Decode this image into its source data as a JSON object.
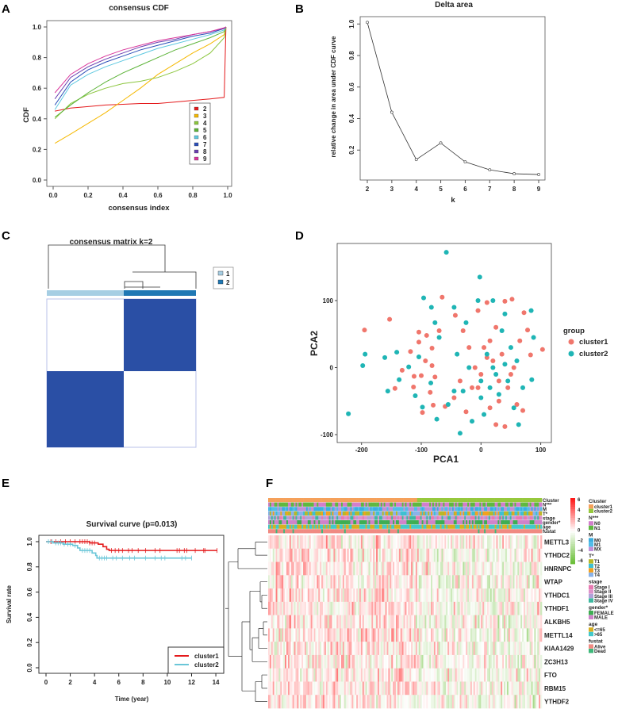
{
  "panel_labels": [
    "A",
    "B",
    "C",
    "D",
    "E",
    "F"
  ],
  "colors": {
    "cdf": [
      "#e41a1c",
      "#f5b800",
      "#8cc63e",
      "#5cb338",
      "#5ec8e0",
      "#2b4fb8",
      "#6a3fb0",
      "#d9359a"
    ],
    "matrix_dark": "#2a4fa5",
    "group_light": "#a6cee3",
    "group_dark": "#1f78b4",
    "cluster1": "#F0766C",
    "cluster2": "#1FB5B5",
    "surv1": "#e41a1c",
    "surv2": "#6ac6d8"
  },
  "chart_data": [
    {
      "type": "line",
      "title": "consensus CDF",
      "xlabel": "consensus index",
      "ylabel": "CDF",
      "xlim": [
        0,
        1
      ],
      "ylim": [
        0,
        1
      ],
      "xticks": [
        "0.0",
        "0.2",
        "0.4",
        "0.6",
        "0.8",
        "1.0"
      ],
      "yticks": [
        "0.0",
        "0.2",
        "0.4",
        "0.6",
        "0.8",
        "1.0"
      ],
      "legend": "right-center",
      "x": [
        0.01,
        0.1,
        0.2,
        0.3,
        0.4,
        0.5,
        0.6,
        0.7,
        0.8,
        0.9,
        0.98,
        0.99
      ],
      "series": [
        {
          "name": "2",
          "values": [
            0.45,
            0.47,
            0.48,
            0.49,
            0.495,
            0.5,
            0.5,
            0.51,
            0.52,
            0.53,
            0.54,
            1.0
          ]
        },
        {
          "name": "3",
          "values": [
            0.24,
            0.3,
            0.37,
            0.44,
            0.52,
            0.6,
            0.69,
            0.76,
            0.83,
            0.89,
            0.95,
            1.0
          ]
        },
        {
          "name": "4",
          "values": [
            0.4,
            0.5,
            0.56,
            0.6,
            0.63,
            0.645,
            0.67,
            0.71,
            0.76,
            0.83,
            0.93,
            1.0
          ]
        },
        {
          "name": "5",
          "values": [
            0.41,
            0.49,
            0.57,
            0.64,
            0.7,
            0.75,
            0.8,
            0.85,
            0.89,
            0.93,
            0.97,
            1.0
          ]
        },
        {
          "name": "6",
          "values": [
            0.46,
            0.62,
            0.69,
            0.74,
            0.78,
            0.82,
            0.86,
            0.89,
            0.92,
            0.95,
            0.98,
            1.0
          ]
        },
        {
          "name": "7",
          "values": [
            0.49,
            0.64,
            0.72,
            0.77,
            0.81,
            0.85,
            0.88,
            0.91,
            0.94,
            0.96,
            0.99,
            1.0
          ]
        },
        {
          "name": "8",
          "values": [
            0.53,
            0.67,
            0.74,
            0.79,
            0.83,
            0.87,
            0.9,
            0.92,
            0.95,
            0.97,
            0.99,
            1.0
          ]
        },
        {
          "name": "9",
          "values": [
            0.57,
            0.69,
            0.76,
            0.81,
            0.85,
            0.88,
            0.91,
            0.93,
            0.95,
            0.97,
            0.995,
            1.0
          ]
        }
      ]
    },
    {
      "type": "line",
      "title": "Delta area",
      "xlabel": "k",
      "ylabel": "relative change in area under CDF curve",
      "x": [
        2,
        3,
        4,
        5,
        6,
        7,
        8,
        9
      ],
      "values": [
        1.01,
        0.44,
        0.14,
        0.245,
        0.125,
        0.075,
        0.05,
        0.045
      ],
      "xticks": [
        "2",
        "3",
        "4",
        "5",
        "6",
        "7",
        "8",
        "9"
      ],
      "yticks": [
        "0.2",
        "0.4",
        "0.6",
        "0.8",
        "1.0"
      ],
      "ylim": [
        0,
        1.05
      ]
    },
    {
      "type": "heatmap",
      "title": "consensus matrix k=2",
      "legend": [
        "1",
        "2"
      ],
      "blocks": "two consensus clusters"
    },
    {
      "type": "scatter",
      "xlabel": "PCA1",
      "ylabel": "PCA2",
      "xticks": [
        "-200",
        "-100",
        "0",
        "100"
      ],
      "yticks": [
        "-100",
        "0",
        "100"
      ],
      "xlim": [
        -235,
        120
      ],
      "ylim": [
        -115,
        182
      ],
      "legend_title": "group",
      "legend": "right",
      "series": [
        {
          "name": "cluster1",
          "points": [
            [
              -195,
              56
            ],
            [
              -153,
              72
            ],
            [
              -144,
              -31
            ],
            [
              -132,
              -4
            ],
            [
              -118,
              24
            ],
            [
              -113,
              -29
            ],
            [
              -112,
              -13
            ],
            [
              -104,
              53
            ],
            [
              -104,
              38
            ],
            [
              -100,
              -12
            ],
            [
              -98,
              -67
            ],
            [
              -93,
              10
            ],
            [
              -91,
              48
            ],
            [
              -85,
              -37
            ],
            [
              -82,
              29
            ],
            [
              -82,
              3
            ],
            [
              -80,
              -56
            ],
            [
              -77,
              -14
            ],
            [
              -70,
              55
            ],
            [
              -65,
              105
            ],
            [
              -60,
              -58
            ],
            [
              -45,
              -45
            ],
            [
              -43,
              78
            ],
            [
              -35,
              -20
            ],
            [
              -30,
              55
            ],
            [
              -25,
              -66
            ],
            [
              -20,
              30
            ],
            [
              -15,
              -30
            ],
            [
              -5,
              85
            ],
            [
              0,
              -10
            ],
            [
              5,
              30
            ],
            [
              10,
              97
            ],
            [
              15,
              -60
            ],
            [
              20,
              10
            ],
            [
              25,
              -85
            ],
            [
              25,
              60
            ],
            [
              30,
              -50
            ],
            [
              35,
              20
            ],
            [
              40,
              -88
            ],
            [
              40,
              99
            ],
            [
              45,
              -30
            ],
            [
              52,
              102
            ],
            [
              55,
              0
            ],
            [
              60,
              -55
            ],
            [
              65,
              40
            ],
            [
              70,
              -64
            ],
            [
              72,
              82
            ],
            [
              78,
              56
            ],
            [
              83,
              19
            ],
            [
              103,
              27
            ],
            [
              10,
              15
            ],
            [
              -5,
              -30
            ],
            [
              30,
              -20
            ],
            [
              50,
              -10
            ],
            [
              15,
              40
            ],
            [
              -10,
              0
            ]
          ]
        },
        {
          "name": "cluster2",
          "points": [
            [
              -222,
              -69
            ],
            [
              -198,
              3
            ],
            [
              -194,
              20
            ],
            [
              -161,
              15
            ],
            [
              -156,
              -35
            ],
            [
              -141,
              23
            ],
            [
              -137,
              -18
            ],
            [
              -121,
              1
            ],
            [
              -110,
              -42
            ],
            [
              -104,
              16
            ],
            [
              -98,
              -59
            ],
            [
              -96,
              104
            ],
            [
              -84,
              -23
            ],
            [
              -83,
              90
            ],
            [
              -77,
              67
            ],
            [
              -74,
              -77
            ],
            [
              -70,
              45
            ],
            [
              -58,
              172
            ],
            [
              -55,
              -55
            ],
            [
              -45,
              90
            ],
            [
              -40,
              20
            ],
            [
              -35,
              -98
            ],
            [
              -30,
              -35
            ],
            [
              -25,
              67
            ],
            [
              -15,
              -80
            ],
            [
              -2,
              135
            ],
            [
              -5,
              100
            ],
            [
              0,
              -45
            ],
            [
              5,
              -70
            ],
            [
              10,
              20
            ],
            [
              20,
              100
            ],
            [
              25,
              -10
            ],
            [
              30,
              -40
            ],
            [
              35,
              55
            ],
            [
              40,
              80
            ],
            [
              45,
              -20
            ],
            [
              50,
              30
            ],
            [
              55,
              -60
            ],
            [
              60,
              10
            ],
            [
              63,
              -85
            ],
            [
              70,
              -30
            ],
            [
              84,
              85
            ],
            [
              85,
              -18
            ],
            [
              88,
              45
            ],
            [
              0,
              -20
            ],
            [
              15,
              -30
            ],
            [
              20,
              0
            ],
            [
              40,
              5
            ],
            [
              -20,
              0
            ],
            [
              -45,
              -35
            ]
          ]
        }
      ]
    },
    {
      "type": "line",
      "title": "Survival curve (p=0.013)",
      "xlabel": "Time (year)",
      "ylabel": "Survival rate",
      "xticks": [
        "0",
        "2",
        "4",
        "6",
        "8",
        "10",
        "12",
        "14"
      ],
      "yticks": [
        "0.0",
        "0.2",
        "0.4",
        "0.6",
        "0.8",
        "1.0"
      ],
      "xlim": [
        0,
        14
      ],
      "ylim": [
        0,
        1
      ],
      "legend": "bottom-right",
      "series": [
        {
          "name": "cluster1",
          "steps": [
            [
              0,
              1.0
            ],
            [
              3.6,
              0.99
            ],
            [
              4.3,
              0.98
            ],
            [
              4.7,
              0.96
            ],
            [
              5.0,
              0.94
            ],
            [
              5.2,
              0.93
            ],
            [
              14.1,
              0.93
            ]
          ],
          "censored": [
            0.4,
            0.8,
            1.2,
            1.6,
            2.0,
            2.4,
            2.8,
            3.0,
            3.2,
            3.4,
            3.6,
            3.8,
            4.0,
            5.4,
            5.7,
            6.0,
            6.3,
            6.8,
            7.1,
            7.6,
            8.2,
            9.0,
            9.4,
            10.8,
            11.0,
            11.4,
            11.6,
            12.3,
            13.0,
            13.1,
            14.1
          ]
        },
        {
          "name": "cluster2",
          "steps": [
            [
              0,
              1.0
            ],
            [
              0.6,
              0.99
            ],
            [
              1.4,
              0.98
            ],
            [
              2.2,
              0.97
            ],
            [
              2.6,
              0.95
            ],
            [
              2.8,
              0.93
            ],
            [
              3.8,
              0.91
            ],
            [
              4.1,
              0.89
            ],
            [
              4.2,
              0.87
            ],
            [
              12.0,
              0.87
            ]
          ],
          "censored": [
            0.2,
            0.5,
            0.8,
            1.0,
            1.2,
            1.5,
            1.8,
            2.0,
            2.4,
            3.0,
            3.2,
            3.4,
            3.6,
            4.4,
            4.6,
            4.8,
            5.0,
            5.5,
            5.8,
            6.3,
            6.9,
            7.3,
            8.2,
            9.0,
            9.5,
            9.8,
            11.2,
            11.5,
            12.0
          ]
        }
      ]
    },
    {
      "type": "heatmap",
      "rows": [
        "METTL3",
        "YTHDC2",
        "HNRNPC",
        "WTAP",
        "YTHDC1",
        "YTHDF1",
        "ALKBH5",
        "METTL14",
        "KIAA1429",
        "ZC3H13",
        "FTO",
        "RBM15",
        "YTHDF2"
      ],
      "annotation_tracks": [
        "Cluster",
        "N***",
        "M",
        "T*",
        "stage",
        "gender*",
        "age",
        "fustat"
      ],
      "color_scale": {
        "ticks": [
          "6",
          "4",
          "2",
          "0",
          "−2",
          "−4",
          "−6"
        ],
        "high": "#e41a1c",
        "mid": "#ffffff",
        "low": "#6cbf3a"
      },
      "legend_groups": [
        {
          "title": "Cluster",
          "items": [
            {
              "label": "cluster1",
              "color": "#F5A05A"
            },
            {
              "label": "cluster2",
              "color": "#96C83C"
            }
          ]
        },
        {
          "title": "N***",
          "items": [
            {
              "label": "N0",
              "color": "#D27ECC"
            },
            {
              "label": "N1",
              "color": "#5FB840"
            }
          ]
        },
        {
          "title": "M",
          "items": [
            {
              "label": "M0",
              "color": "#3AAEE0"
            },
            {
              "label": "M1",
              "color": "#52BCE8"
            },
            {
              "label": "MX",
              "color": "#C090D8"
            }
          ]
        },
        {
          "title": "T*",
          "items": [
            {
              "label": "T1",
              "color": "#B8B828"
            },
            {
              "label": "T2",
              "color": "#3EC0D2"
            },
            {
              "label": "T3",
              "color": "#F2A01E"
            },
            {
              "label": "T4",
              "color": "#8AB2E8"
            }
          ]
        },
        {
          "title": "stage",
          "items": [
            {
              "label": "Stage I",
              "color": "#E87AB2"
            },
            {
              "label": "Stage II",
              "color": "#DE92CA"
            },
            {
              "label": "Stage III",
              "color": "#B0A2D8"
            },
            {
              "label": "Stage IV",
              "color": "#3EB8A0"
            }
          ]
        },
        {
          "title": "gender*",
          "items": [
            {
              "label": "FEMALE",
              "color": "#3EAE52"
            },
            {
              "label": "MALE",
              "color": "#D082CA"
            }
          ]
        },
        {
          "title": "age",
          "items": [
            {
              "label": "<=65",
              "color": "#D8B020"
            },
            {
              "label": ">65",
              "color": "#44C8CA"
            }
          ]
        },
        {
          "title": "fustat",
          "items": [
            {
              "label": "Alive",
              "color": "#F08A82"
            },
            {
              "label": "Dead",
              "color": "#3EB87A"
            }
          ]
        }
      ]
    }
  ]
}
